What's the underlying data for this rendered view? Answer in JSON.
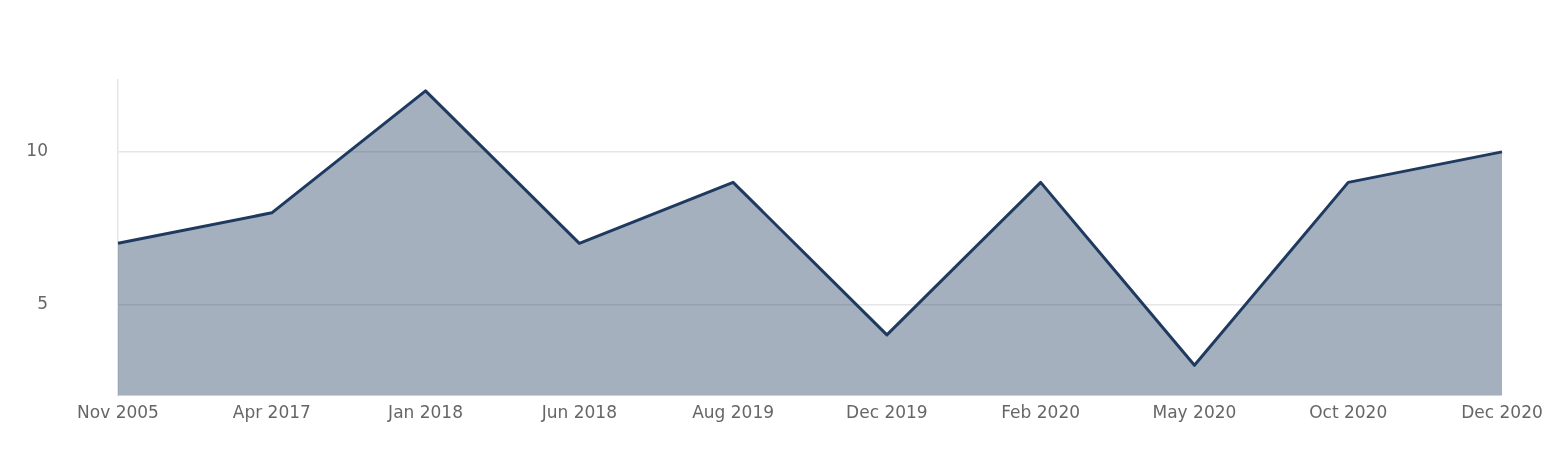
{
  "chart_data": {
    "type": "area",
    "categories": [
      "Nov 2005",
      "Apr 2017",
      "Jan 2018",
      "Jun 2018",
      "Aug 2019",
      "Dec 2019",
      "Feb 2020",
      "May 2020",
      "Oct 2020",
      "Dec 2020"
    ],
    "series": [
      {
        "color": "#1f3a60",
        "values": [
          7,
          8,
          12,
          7,
          9,
          4,
          9,
          3,
          9,
          10
        ]
      }
    ],
    "ylim": [
      2,
      12.35
    ],
    "yticks": [
      5,
      10
    ],
    "grid": "y",
    "legend": false,
    "marker": "none",
    "line_style": "solid"
  }
}
